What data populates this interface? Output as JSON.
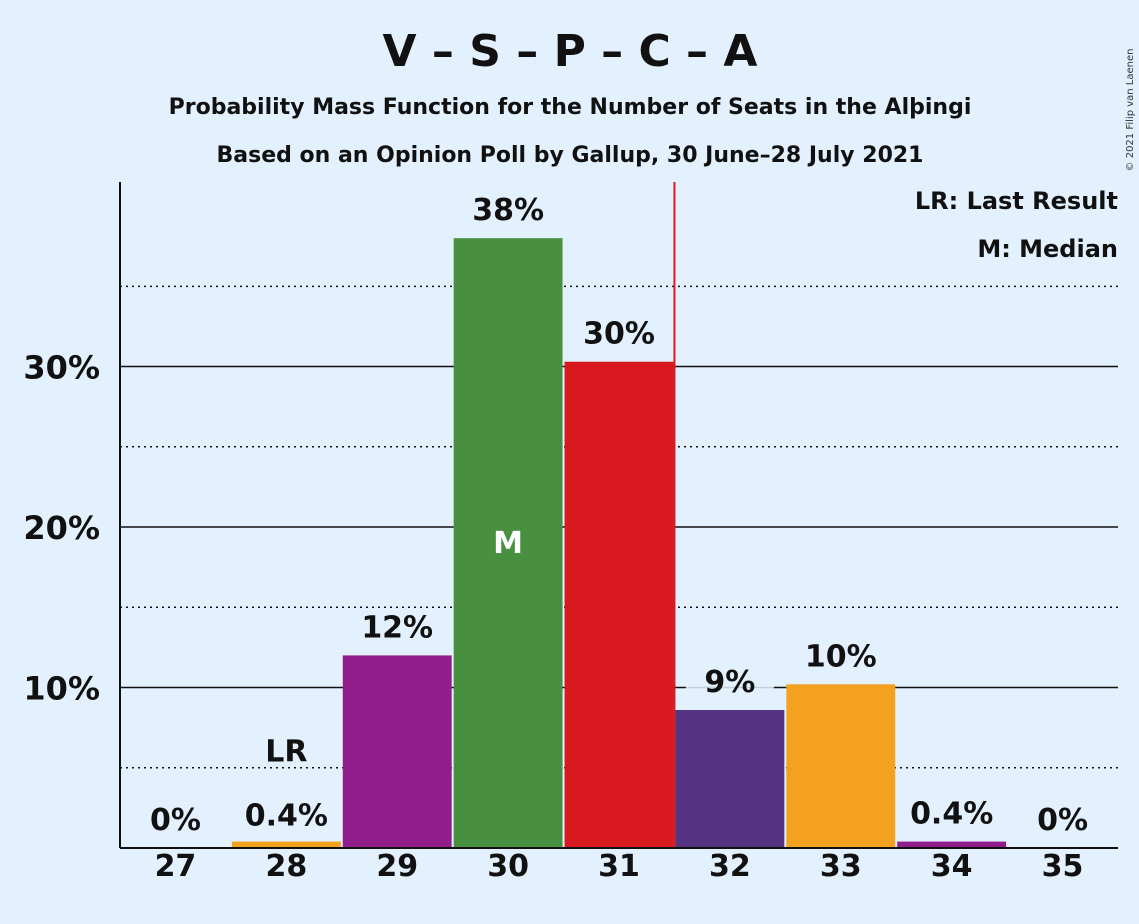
{
  "chart_data": {
    "type": "bar",
    "title": "V – S – P – C – A",
    "subtitle_lines": [
      "Probability Mass Function for the Number of Seats in the Alþingi",
      "Based on an Opinion Poll by Gallup, 30 June–28 July 2021"
    ],
    "copyright": "© 2021 Filip van Laenen",
    "categories": [
      "27",
      "28",
      "29",
      "30",
      "31",
      "32",
      "33",
      "34",
      "35"
    ],
    "values": [
      0,
      0.4,
      12,
      38,
      30.3,
      8.6,
      10.2,
      0.4,
      0
    ],
    "value_labels": [
      "0%",
      "0.4%",
      "12%",
      "38%",
      "30%",
      "9%",
      "10%",
      "0.4%",
      "0%"
    ],
    "bar_colors": [
      "#911d8a",
      "#f4a11f",
      "#911d8a",
      "#48903f",
      "#d81920",
      "#553380",
      "#f4a11f",
      "#911d8a",
      "#911d8a"
    ],
    "ytick_values": [
      10,
      20,
      30
    ],
    "ytick_labels": [
      "10%",
      "20%",
      "30%"
    ],
    "ylim": [
      0,
      41.5
    ],
    "minor_grid_values": [
      5,
      15,
      25,
      35
    ],
    "last_result_category": "28",
    "last_result_label": "LR",
    "median_category": "30",
    "median_label": "M",
    "marker_line_after_category": "31",
    "marker_line_color": "#d81920",
    "legend": [
      "LR: Last Result",
      "M: Median"
    ],
    "legend_position": "top-right",
    "grid": true
  }
}
